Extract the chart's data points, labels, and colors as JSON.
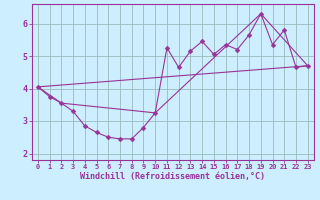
{
  "xlabel": "Windchill (Refroidissement éolien,°C)",
  "background_color": "#cceeff",
  "line_color": "#993399",
  "grid_color": "#99bbbb",
  "xlim": [
    -0.5,
    23.5
  ],
  "ylim": [
    1.8,
    6.6
  ],
  "yticks": [
    2,
    3,
    4,
    5,
    6
  ],
  "xticks": [
    0,
    1,
    2,
    3,
    4,
    5,
    6,
    7,
    8,
    9,
    10,
    11,
    12,
    13,
    14,
    15,
    16,
    17,
    18,
    19,
    20,
    21,
    22,
    23
  ],
  "line1_x": [
    0,
    1,
    2,
    3,
    4,
    5,
    6,
    7,
    8,
    9,
    10,
    11,
    12,
    13,
    14,
    15,
    16,
    17,
    18,
    19,
    20,
    21,
    22,
    23
  ],
  "line1_y": [
    4.05,
    3.75,
    3.55,
    3.3,
    2.85,
    2.65,
    2.5,
    2.45,
    2.45,
    2.8,
    3.25,
    5.25,
    4.65,
    5.15,
    5.45,
    5.05,
    5.35,
    5.2,
    5.65,
    6.3,
    5.35,
    5.8,
    4.65,
    4.7
  ],
  "line2_x": [
    0,
    23
  ],
  "line2_y": [
    4.05,
    4.7
  ],
  "line3_x": [
    0,
    2,
    10,
    19,
    23
  ],
  "line3_y": [
    4.05,
    3.55,
    3.25,
    6.3,
    4.7
  ]
}
